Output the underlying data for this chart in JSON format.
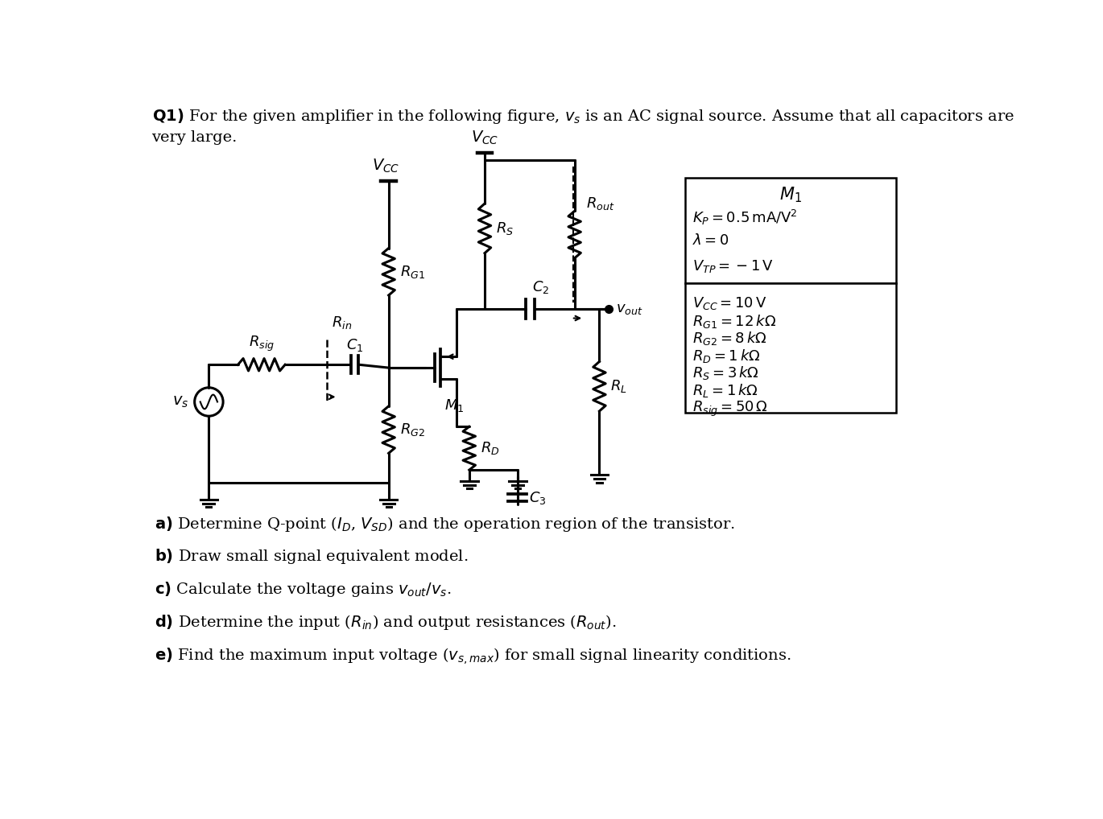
{
  "bg_color": "#ffffff",
  "box1_title": "$M_1$",
  "box1_lines": [
    "$K_P = 0.5\\,\\mathrm{mA/V^2}$",
    "$\\lambda = 0$",
    "$V_{TP} = -1\\,\\mathrm{V}$"
  ],
  "box2_lines": [
    "$V_{CC} = 10\\,\\mathrm{V}$",
    "$R_{G1} = 12\\,k\\Omega$",
    "$R_{G2} = 8\\,k\\Omega$",
    "$R_D = 1\\,k\\Omega$",
    "$R_S = 3\\,k\\Omega$",
    "$R_L = 1\\,k\\Omega$",
    "$R_{sig} = 50\\,\\Omega$"
  ]
}
